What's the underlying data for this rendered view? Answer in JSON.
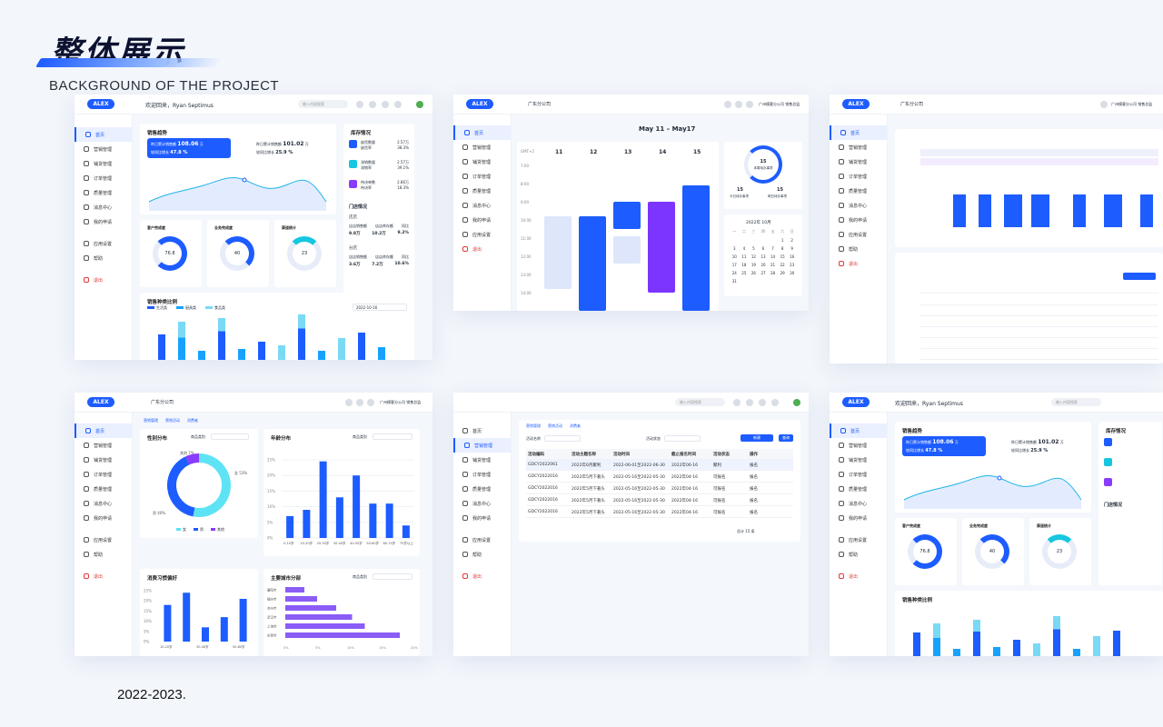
{
  "header": {
    "title": "整体展示",
    "subtitle": "BACKGROUND OF THE PROJECT",
    "year": "2022-2023."
  },
  "brand": "ALEX",
  "welcome": "欢迎回来，Ryan Septimus",
  "search_placeholder": "输入内容搜索",
  "region": "广东分公司",
  "company": "广州模客分公司  销售总监",
  "nav": [
    "首页",
    "营销管理",
    "铺货管理",
    "订单管理",
    "质量管理",
    "消息中心",
    "我的申请",
    "应用设置",
    "帮助",
    "退出"
  ],
  "dashboard": {
    "sales_title": "销售趋势",
    "stat1_label": "昨日累计销售额",
    "stat1_value": "108.06",
    "stat1_unit": "万",
    "stat1_sub": "较同比增长",
    "stat1_pct": "47.8 %",
    "stat2_label": "昨日累计销售额",
    "stat2_value": "101.02",
    "stat2_unit": "万",
    "stat2_sub": "较同比增长",
    "stat2_pct": "25.9 %",
    "ring1": "76.8",
    "ring2": "40",
    "ring3": "23",
    "product_title": "销售种类比例",
    "legend": [
      "生活类",
      "厨具类",
      "食品类"
    ],
    "date": "2022-10-16",
    "ring_titles": [
      "客户完成度",
      "业务完成度",
      "渠道统计"
    ],
    "right_title": "库存情况",
    "right_items": [
      {
        "label": "缺货数量",
        "sub": "缺货率",
        "v1": "2.57万",
        "v2": "38.3%"
      },
      {
        "label": "滞销数量",
        "sub": "滞销率",
        "v1": "2.57万",
        "v2": "39.1%"
      },
      {
        "label": "待决单数",
        "sub": "待决率",
        "v1": "2.86万",
        "v2": "18.3%"
      }
    ],
    "store_title": "门店情况",
    "store_a": "店店",
    "store_b": "分店",
    "store_cols": [
      "店店销售额",
      "店店库存额",
      "同比"
    ],
    "store_vals": [
      "9.8万",
      "10.2万",
      "9.2%"
    ],
    "store_vals2": [
      "3.6万",
      "7.2万",
      "10.6%"
    ]
  },
  "calendar": {
    "range": "May 11 – May17",
    "tz": "GMT+2",
    "days": [
      "11",
      "12",
      "13",
      "14",
      "15"
    ],
    "hours": [
      "7:00",
      "8:00",
      "9:00",
      "10:00",
      "11:00",
      "12:00",
      "13:00",
      "14:00"
    ],
    "ring_value": "15",
    "ring_label": "本周待办事项",
    "today_label": "今日待办事项",
    "today_value": "15",
    "done_label": "明日待办事项",
    "done_value": "15",
    "month": "2022年 10月",
    "weekdays": [
      "一",
      "二",
      "三",
      "四",
      "五",
      "六",
      "日"
    ],
    "dates": [
      "1",
      "2",
      "3",
      "4",
      "5",
      "6",
      "7",
      "8",
      "9",
      "10",
      "11",
      "12",
      "13",
      "14",
      "15",
      "16",
      "17",
      "18",
      "19",
      "20",
      "21",
      "22",
      "23",
      "24",
      "25",
      "26",
      "27",
      "28",
      "29",
      "30",
      "31"
    ]
  },
  "table": {
    "tabs": [
      "营销管理",
      "营销活动",
      "消费者"
    ],
    "filter1": "活动名称",
    "filter2": "活动状态",
    "btn_new": "新建",
    "btn_query": "查询",
    "cols": [
      "活动编码",
      "活动主题名称",
      "活动时间",
      "截止报名时间",
      "活动状态",
      "操作"
    ],
    "rows": [
      [
        "GDCY2022061",
        "2022年6月聚利",
        "2022-06-01至2022-06-30",
        "2022年06-16",
        "聚利",
        "报名"
      ],
      [
        "GDCY2022016",
        "2022年5月下著头",
        "2022-05-16至2022-05-30",
        "2022年04-16",
        "可报名",
        "报名"
      ],
      [
        "GDCY2022016",
        "2022年5月下著头",
        "2022-05-16至2022-05-30",
        "2022年04-16",
        "可报名",
        "报名"
      ],
      [
        "GDCY2022016",
        "2022年5月下著头",
        "2022-05-16至2022-05-30",
        "2022年04-16",
        "可报名",
        "报名"
      ],
      [
        "GDCY2022016",
        "2022年5月下著头",
        "2022-05-16至2022-05-30",
        "2022年04-16",
        "可报名",
        "报名"
      ]
    ],
    "pager": "总计 15 条"
  },
  "charts": {
    "gender_title": "性别分布",
    "age_title": "年龄分布",
    "habit_title": "消费习惯偏好",
    "city_title": "主要城市分部",
    "filter_label": "商品类别",
    "gender_legend": [
      "女",
      "男",
      "其他"
    ],
    "gender_labels": [
      "其他 7%",
      "男 40%",
      "女 53%"
    ],
    "age_categories": [
      "0-10岁",
      "10-20岁",
      "20-30岁",
      "30-40岁",
      "40-50岁",
      "50-60岁",
      "60-70岁",
      "70岁以上"
    ],
    "age_values": [
      7,
      9,
      24.5,
      13,
      20,
      11,
      11,
      4
    ],
    "habit_categories": [
      "10-20岁",
      "30-40岁",
      "50-60岁"
    ],
    "habit_values": [
      18,
      24,
      7,
      12,
      21
    ],
    "city_categories": [
      "廉阳市",
      "福州市",
      "台州市",
      "武汉市",
      "上海市",
      "东莞市"
    ],
    "city_values": [
      3,
      5,
      8,
      10.5,
      12.5,
      18
    ]
  }
}
